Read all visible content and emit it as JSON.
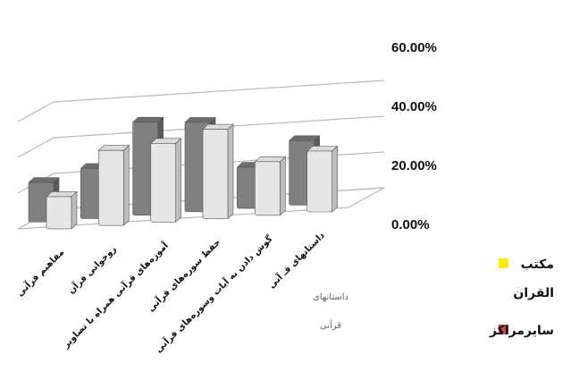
{
  "chart_data": {
    "type": "bar",
    "title": "",
    "xlabel": "",
    "ylabel": "",
    "ylim": [
      0,
      60
    ],
    "y_unit": "%",
    "grid": true,
    "legend_position": "bottom-right",
    "y_ticks": [
      "0.00%",
      "20.00%",
      "40.00%",
      "60.00%"
    ],
    "categories": [
      "مفاهیم قرآنی",
      "روخوانی قرآن",
      "آموزه‌های قرآنی همراه با تصاویر",
      "حفظ سوره‌های قرآنی",
      "گوش دادن به آیات وسوره‌های قرآنی",
      "داستانهای قـ آنی"
    ],
    "series": [
      {
        "name": "مکتب القران",
        "color": "#808080",
        "values": [
          22,
          28,
          52,
          50,
          23,
          36
        ]
      },
      {
        "name": "سایرمراکز",
        "color": "#e6e6e6",
        "values": [
          18,
          42,
          44,
          50,
          30,
          34
        ]
      }
    ],
    "annotation": [
      "داستانهای",
      "قرآنی"
    ],
    "legend": {
      "items": [
        {
          "lines": [
            "مکتب",
            "القران"
          ],
          "color": "#ffeb00"
        },
        {
          "lines": [
            "سایرمراکز"
          ],
          "color": "#d64545"
        }
      ]
    }
  }
}
